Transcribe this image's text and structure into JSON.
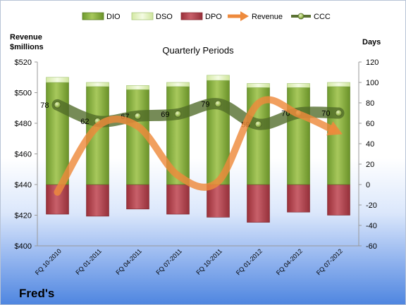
{
  "company": "Fred's",
  "chart_data": {
    "type": "bar",
    "title": "Quarterly Periods",
    "left_axis": {
      "label_line1": "Revenue",
      "label_line2": "$millions",
      "ylim": [
        400,
        520
      ],
      "ticks": [
        "$400",
        "$420",
        "$440",
        "$460",
        "$480",
        "$500",
        "$520"
      ],
      "tick_values": [
        400,
        420,
        440,
        460,
        480,
        500,
        520
      ]
    },
    "right_axis": {
      "label": "Days",
      "ylim": [
        -60,
        120
      ],
      "ticks": [
        "-60",
        "-40",
        "-20",
        "0",
        "20",
        "40",
        "60",
        "80",
        "100",
        "120"
      ],
      "tick_values": [
        -60,
        -40,
        -20,
        0,
        20,
        40,
        60,
        80,
        100,
        120
      ]
    },
    "categories": [
      "FQ 10-2010",
      "FQ 01-2011",
      "FQ 04-2011",
      "FQ 07-2011",
      "FQ 10-2011",
      "FQ 01-2012",
      "FQ 04-2012",
      "FQ 07-2012"
    ],
    "legend_position": "top",
    "legend": [
      {
        "key": "dio",
        "name": "DIO",
        "kind": "bar",
        "color": "#8fb44b"
      },
      {
        "key": "dso",
        "name": "DSO",
        "kind": "bar",
        "color": "#e4f2c0"
      },
      {
        "key": "dpo",
        "name": "DPO",
        "kind": "bar",
        "color": "#b94a52"
      },
      {
        "key": "revenue",
        "name": "Revenue",
        "kind": "arrow",
        "color": "#ee8a3c"
      },
      {
        "key": "ccc",
        "name": "CCC",
        "kind": "line",
        "color": "#5b7233"
      }
    ],
    "series": [
      {
        "key": "dio",
        "name": "DIO",
        "values": [
          100,
          96,
          93,
          96,
          102,
          95,
          95,
          96
        ]
      },
      {
        "key": "dso",
        "name": "DSO",
        "values": [
          5,
          4,
          4,
          4,
          5,
          4,
          4,
          4
        ]
      },
      {
        "key": "dpo",
        "name": "DPO",
        "values": [
          -29,
          -31,
          -24,
          -29,
          -32,
          -37,
          -27,
          -30
        ]
      },
      {
        "key": "ccc",
        "name": "CCC",
        "values": [
          78,
          62,
          67,
          69,
          79,
          59,
          70,
          70
        ],
        "labels": [
          "78",
          "62",
          "67",
          "69",
          "79",
          "59",
          "70",
          "70"
        ]
      },
      {
        "key": "revenue",
        "name": "Revenue",
        "values": [
          435,
          478,
          478,
          446,
          442,
          493,
          486,
          474
        ]
      }
    ],
    "grid": false
  }
}
